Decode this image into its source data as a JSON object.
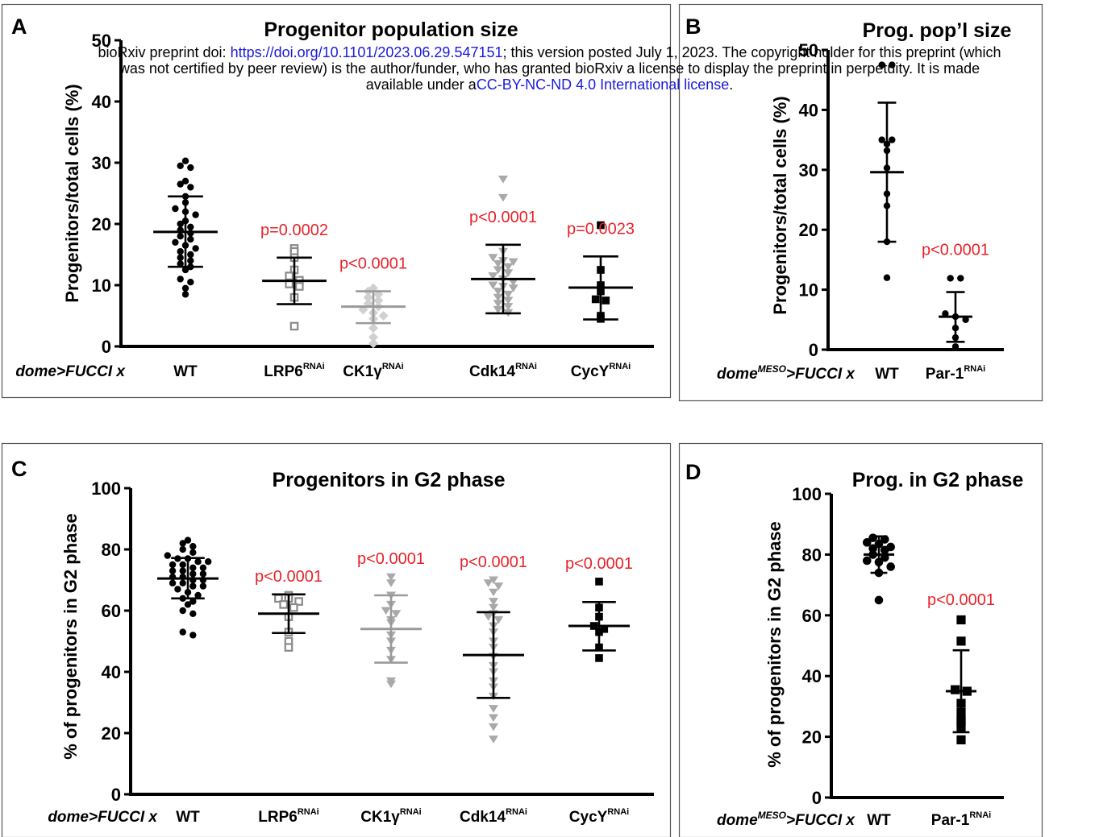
{
  "preprint_notice": {
    "prefix": "bioRxiv preprint doi: ",
    "doi_link": "https://doi.org/10.1101/2023.06.29.547151",
    "middle": "; this version posted July 1, 2023. The copyright holder for this preprint (which",
    "line2": "was not certified by peer review) is the author/funder, who has granted bioRxiv a license to display the preprint in perpetuity. It is made",
    "line3_prefix": "available under a",
    "license_link": "CC-BY-NC-ND 4.0 International license",
    "line3_suffix": "."
  },
  "colors": {
    "black": "#000000",
    "dark_gray": "#8a8a8a",
    "mid_gray": "#a9a9a9",
    "light_gray": "#d0d0d0",
    "pvalue": "#e8222a",
    "link": "#1a1adb"
  },
  "chart_data": [
    {
      "panel": "A",
      "type": "scatter",
      "title": "Progenitor population size",
      "ylabel": "Progenitors/total cells (%)",
      "xlabel_prefix": "dome>FUCCI x",
      "ylim": [
        0,
        50
      ],
      "yticks": [
        0,
        10,
        20,
        30,
        40,
        50
      ],
      "groups": [
        {
          "label": "WT",
          "sup": "",
          "marker": "circle",
          "color": "#000000",
          "mean": 18.7,
          "sd_upper": 24.5,
          "sd_lower": 13.0,
          "pvalue": "",
          "points": [
            29.5,
            30.3,
            29.2,
            27,
            26.5,
            26,
            24.5,
            23.5,
            22.5,
            22,
            21.5,
            20.5,
            20,
            19.5,
            19,
            18.5,
            18,
            17.5,
            17,
            16.5,
            16,
            15.5,
            15,
            14.5,
            14,
            13.5,
            13,
            12.5,
            11,
            10.5,
            9.5,
            8.5
          ]
        },
        {
          "label": "LRP6",
          "sup": "RNAi",
          "marker": "square-open",
          "color": "#8a8a8a",
          "mean": 10.7,
          "sd_upper": 14.5,
          "sd_lower": 6.9,
          "pvalue": "p=0.0002",
          "points": [
            16,
            15.5,
            14.5,
            12.5,
            11.5,
            10.8,
            10.2,
            9.8,
            8,
            3.3
          ]
        },
        {
          "label": "CK1γ",
          "sup": "RNAi",
          "marker": "diamond",
          "color": "#d0d0d0",
          "mean": 6.5,
          "sd_upper": 9.0,
          "sd_lower": 3.8,
          "pvalue": "p<0.0001",
          "points": [
            9.5,
            9,
            8.5,
            8,
            7.5,
            7,
            6.5,
            6,
            5.5,
            5,
            4.5,
            3,
            1.5,
            0.5
          ]
        },
        {
          "label": "Cdk14",
          "sup": "RNAi",
          "marker": "triangle-down",
          "color": "#a9a9a9",
          "mean": 11.0,
          "sd_upper": 16.6,
          "sd_lower": 5.4,
          "pvalue": "p<0.0001",
          "points": [
            27.3,
            24.3,
            15.5,
            14.5,
            14,
            13.8,
            13.5,
            13,
            12.5,
            12,
            11.5,
            11,
            10.5,
            10,
            9.8,
            9.5,
            9,
            8.5,
            8,
            7.5,
            7,
            6.5,
            6,
            5.5
          ]
        },
        {
          "label": "CycY",
          "sup": "RNAi",
          "marker": "square",
          "color": "#000000",
          "mean": 9.6,
          "sd_upper": 14.7,
          "sd_lower": 4.4,
          "pvalue": "p=0.0023",
          "points": [
            19.8,
            12.5,
            10,
            9,
            7.7,
            7.5,
            5,
            4.5
          ]
        }
      ]
    },
    {
      "panel": "B",
      "type": "scatter",
      "title": "Prog. pop’l size",
      "ylabel": "Progenitors/total cells (%)",
      "xlabel_prefix": "domeMESO>FUCCI x",
      "ylim": [
        0,
        50
      ],
      "yticks": [
        0,
        10,
        20,
        30,
        40,
        50
      ],
      "groups": [
        {
          "label": "WT",
          "sup": "",
          "marker": "circle",
          "color": "#000000",
          "mean": 29.6,
          "sd_upper": 41.2,
          "sd_lower": 18.0,
          "pvalue": "",
          "points": [
            47.5,
            47.5,
            35,
            35,
            34.3,
            33.2,
            30.3,
            26,
            24,
            18,
            12
          ]
        },
        {
          "label": "Par-1",
          "sup": "RNAi",
          "marker": "circle",
          "color": "#000000",
          "mean": 5.5,
          "sd_upper": 9.6,
          "sd_lower": 1.3,
          "pvalue": "p<0.0001",
          "points": [
            11.9,
            11.9,
            6,
            5.5,
            5,
            3.6,
            2,
            0.5
          ]
        }
      ]
    },
    {
      "panel": "C",
      "type": "scatter",
      "title": "Progenitors in G2 phase",
      "ylabel": "% of progenitors in G2 phase",
      "xlabel_prefix": "dome>FUCCI x",
      "ylim": [
        0,
        100
      ],
      "yticks": [
        0,
        20,
        40,
        60,
        80,
        100
      ],
      "groups": [
        {
          "label": "WT",
          "sup": "",
          "marker": "circle",
          "color": "#000000",
          "mean": 70.5,
          "sd_upper": 77.2,
          "sd_lower": 64.0,
          "pvalue": "",
          "points": [
            83,
            82,
            81,
            80,
            79,
            78,
            77,
            77,
            76,
            76,
            75,
            75,
            74,
            74,
            73,
            73,
            72,
            72,
            71,
            71,
            70,
            70,
            69,
            69,
            68,
            68,
            67,
            66,
            65,
            64,
            63,
            62,
            60,
            59,
            53,
            52
          ]
        },
        {
          "label": "LRP6",
          "sup": "RNAi",
          "marker": "square-open",
          "color": "#8a8a8a",
          "mean": 59.0,
          "sd_upper": 65.3,
          "sd_lower": 52.7,
          "pvalue": "p<0.0001",
          "points": [
            65,
            64,
            64,
            63,
            62,
            61,
            58,
            53,
            50,
            48
          ]
        },
        {
          "label": "CK1γ",
          "sup": "RNAi",
          "marker": "triangle-down",
          "color": "#a9a9a9",
          "mean": 54.0,
          "sd_upper": 65.0,
          "sd_lower": 43.0,
          "pvalue": "p<0.0001",
          "points": [
            71,
            69,
            65,
            62,
            60,
            59,
            57,
            56,
            52,
            50,
            47,
            44,
            37,
            36
          ]
        },
        {
          "label": "Cdk14",
          "sup": "RNAi",
          "marker": "triangle-down",
          "color": "#a9a9a9",
          "mean": 45.5,
          "sd_upper": 59.5,
          "sd_lower": 31.5,
          "pvalue": "p<0.0001",
          "points": [
            70,
            69,
            68,
            66,
            63,
            61,
            59,
            58,
            57,
            55,
            53,
            50,
            48,
            45,
            42,
            40,
            37,
            35,
            32,
            28,
            25,
            22,
            18
          ]
        },
        {
          "label": "CycY",
          "sup": "RNAi",
          "marker": "square",
          "color": "#000000",
          "mean": 55.0,
          "sd_upper": 62.8,
          "sd_lower": 47.0,
          "pvalue": "p<0.0001",
          "points": [
            69.5,
            61,
            58,
            55,
            54,
            53,
            48,
            44.5
          ]
        }
      ]
    },
    {
      "panel": "D",
      "type": "scatter",
      "title": "Prog. in G2 phase",
      "ylabel": "% of progenitors in G2 phase",
      "xlabel_prefix": "domeMESO>FUCCI x",
      "ylim": [
        0,
        100
      ],
      "yticks": [
        0,
        20,
        40,
        60,
        80,
        100
      ],
      "groups": [
        {
          "label": "WT",
          "sup": "",
          "marker": "circle",
          "color": "#000000",
          "mean": 80.0,
          "sd_upper": 86.0,
          "sd_lower": 74.0,
          "pvalue": "",
          "points": [
            85.5,
            85,
            84,
            83.5,
            82.5,
            82,
            81.5,
            80,
            79,
            78,
            77.5,
            76,
            74,
            65
          ]
        },
        {
          "label": "Par-1",
          "sup": "RNAi",
          "marker": "square",
          "color": "#000000",
          "mean": 35.0,
          "sd_upper": 48.5,
          "sd_lower": 21.5,
          "pvalue": "p<0.0001",
          "points": [
            58.5,
            51.5,
            35.5,
            35,
            31,
            28,
            25.5,
            25,
            23,
            19
          ]
        }
      ]
    }
  ]
}
